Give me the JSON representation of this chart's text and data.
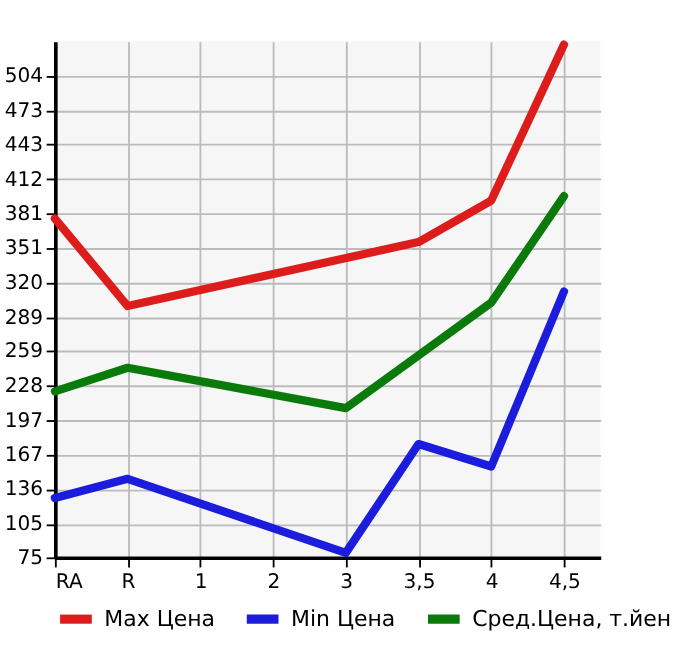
{
  "chart_data": {
    "type": "line",
    "categories": [
      "RA",
      "R",
      "1",
      "2",
      "3",
      "3,5",
      "4",
      "4,5"
    ],
    "series": [
      {
        "name": "Max Цена",
        "color": "#dd1c1c",
        "values": [
          377,
          299,
          null,
          null,
          null,
          356,
          393,
          532
        ]
      },
      {
        "name": "Min Цена",
        "color": "#1c1cdd",
        "values": [
          128,
          145,
          null,
          null,
          79,
          176,
          156,
          312
        ]
      },
      {
        "name": "Сред.Цена, т.йен",
        "color": "#0a7a0a",
        "values": [
          223,
          244,
          null,
          null,
          208,
          null,
          302,
          397
        ]
      }
    ],
    "ylim": [
      75,
      535
    ],
    "yticks": [
      75,
      105,
      136,
      167,
      197,
      228,
      259,
      289,
      320,
      351,
      381,
      412,
      443,
      473,
      504
    ],
    "grid": true,
    "legend": "bottom",
    "marker": "none",
    "line_style": "solid"
  }
}
